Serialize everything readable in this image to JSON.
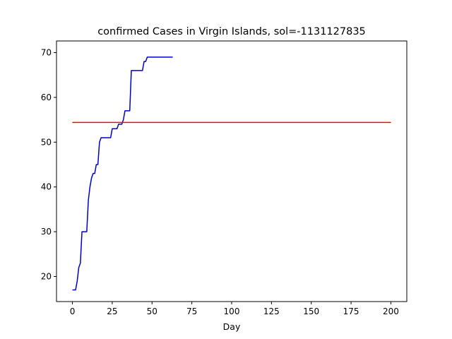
{
  "chart_data": {
    "type": "line",
    "title": "confirmed Cases in Virgin Islands, sol=-1131127835",
    "xlabel": "Day",
    "ylabel": "",
    "xlim": [
      -10,
      210
    ],
    "ylim": [
      14.4,
      72.6
    ],
    "xticks": [
      0,
      25,
      50,
      75,
      100,
      125,
      150,
      175,
      200
    ],
    "yticks": [
      20,
      30,
      40,
      50,
      60,
      70
    ],
    "grid": false,
    "series": [
      {
        "color": "#0000cc",
        "x": [
          0,
          2,
          3,
          4,
          5,
          6,
          7,
          8,
          9,
          10,
          11,
          12,
          13,
          14,
          15,
          16,
          17,
          18,
          19,
          20,
          21,
          22,
          23,
          24,
          25,
          26,
          27,
          28,
          29,
          30,
          31,
          32,
          33,
          34,
          35,
          36,
          37,
          38,
          39,
          40,
          41,
          42,
          43,
          44,
          45,
          46,
          47,
          48,
          49,
          50,
          55,
          60,
          63
        ],
        "y": [
          17,
          17,
          19,
          22,
          23,
          30,
          30,
          30,
          30,
          37,
          40,
          42,
          43,
          43,
          45,
          45,
          50,
          51,
          51,
          51,
          51,
          51,
          51,
          51,
          53,
          53,
          53,
          53,
          54,
          54,
          54,
          55,
          57,
          57,
          57,
          57,
          66,
          66,
          66,
          66,
          66,
          66,
          66,
          66,
          68,
          68,
          69,
          69,
          69,
          69,
          69,
          69,
          69
        ]
      },
      {
        "color": "#ff0000",
        "x": [
          0,
          200
        ],
        "y": [
          54.4,
          54.4
        ]
      }
    ]
  }
}
